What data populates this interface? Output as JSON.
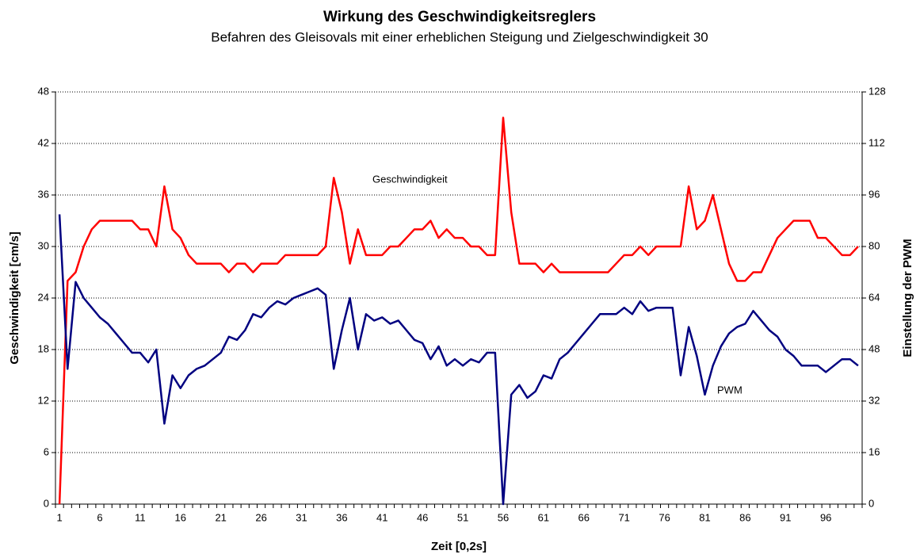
{
  "chart_data": {
    "type": "line",
    "title": "Wirkung des Geschwindigkeitsreglers",
    "subtitle": "Befahren des Gleisovals mit einer erheblichen Steigung und Zielgeschwindigkeit 30",
    "x_label": "Zeit [0,2s]",
    "y_label": "Geschwindigkeit [cm/s]",
    "y2_label": "Einstellung der PWM",
    "categories": [
      1,
      null,
      null,
      null,
      null,
      6,
      null,
      null,
      null,
      null,
      11,
      null,
      null,
      null,
      null,
      16,
      null,
      null,
      null,
      null,
      21,
      null,
      null,
      null,
      null,
      26,
      null,
      null,
      null,
      null,
      31,
      null,
      null,
      null,
      null,
      36,
      null,
      null,
      null,
      null,
      41,
      null,
      null,
      null,
      null,
      46,
      null,
      null,
      null,
      null,
      51,
      null,
      null,
      null,
      null,
      56,
      null,
      null,
      null,
      null,
      61,
      null,
      null,
      null,
      null,
      66,
      null,
      null,
      null,
      null,
      71,
      null,
      null,
      null,
      null,
      76,
      null,
      null,
      null,
      null,
      81,
      null,
      null,
      null,
      null,
      86,
      null,
      null,
      null,
      null,
      91,
      null,
      null,
      null,
      null,
      96,
      null,
      null,
      null,
      null
    ],
    "series": [
      {
        "name": "Geschwindigkeit",
        "color": "#ff0000",
        "values": [
          0,
          26,
          27,
          30,
          32,
          33,
          33,
          33,
          33,
          33,
          32,
          32,
          30,
          37,
          32,
          31,
          29,
          28,
          28,
          28,
          28,
          27,
          28,
          28,
          27,
          28,
          28,
          28,
          29,
          29,
          29,
          29,
          29,
          30,
          38,
          34,
          28,
          32,
          29,
          29,
          29,
          30,
          30,
          31,
          32,
          32,
          33,
          31,
          32,
          31,
          31,
          30,
          30,
          29,
          29,
          45,
          34,
          28,
          28,
          28,
          27,
          28,
          27,
          27,
          27,
          27,
          27,
          27,
          27,
          28,
          29,
          29,
          30,
          29,
          30,
          30,
          30,
          30,
          37,
          32,
          33,
          36,
          32,
          28,
          26,
          26,
          27,
          27,
          29,
          31,
          32,
          33,
          33,
          33,
          31,
          31,
          30,
          29,
          29,
          30
        ]
      },
      {
        "name": "PWM",
        "color": "#000080",
        "axis": "y2",
        "values": [
          90,
          42,
          69,
          64,
          61,
          58,
          56,
          53,
          50,
          47,
          47,
          44,
          48,
          25,
          40,
          36,
          40,
          42,
          43,
          45,
          47,
          52,
          51,
          54,
          59,
          58,
          61,
          63,
          62,
          64,
          65,
          66,
          67,
          65,
          42,
          54,
          64,
          48,
          59,
          57,
          58,
          56,
          57,
          54,
          51,
          50,
          45,
          49,
          43,
          45,
          43,
          45,
          44,
          47,
          47,
          0,
          34,
          37,
          33,
          35,
          40,
          39,
          45,
          47,
          50,
          53,
          56,
          59,
          59,
          59,
          61,
          59,
          63,
          60,
          61,
          61,
          61,
          40,
          55,
          46,
          34,
          43,
          49,
          53,
          55,
          56,
          60,
          57,
          54,
          52,
          48,
          46,
          43,
          43,
          43,
          41,
          43,
          45,
          45,
          43
        ]
      }
    ],
    "ylim": [
      0,
      48
    ],
    "yticks": [
      0,
      6,
      12,
      18,
      24,
      30,
      36,
      42,
      48
    ],
    "y2lim": [
      0,
      128
    ],
    "y2ticks": [
      0,
      16,
      32,
      48,
      64,
      80,
      96,
      112,
      128
    ],
    "grid": true
  }
}
